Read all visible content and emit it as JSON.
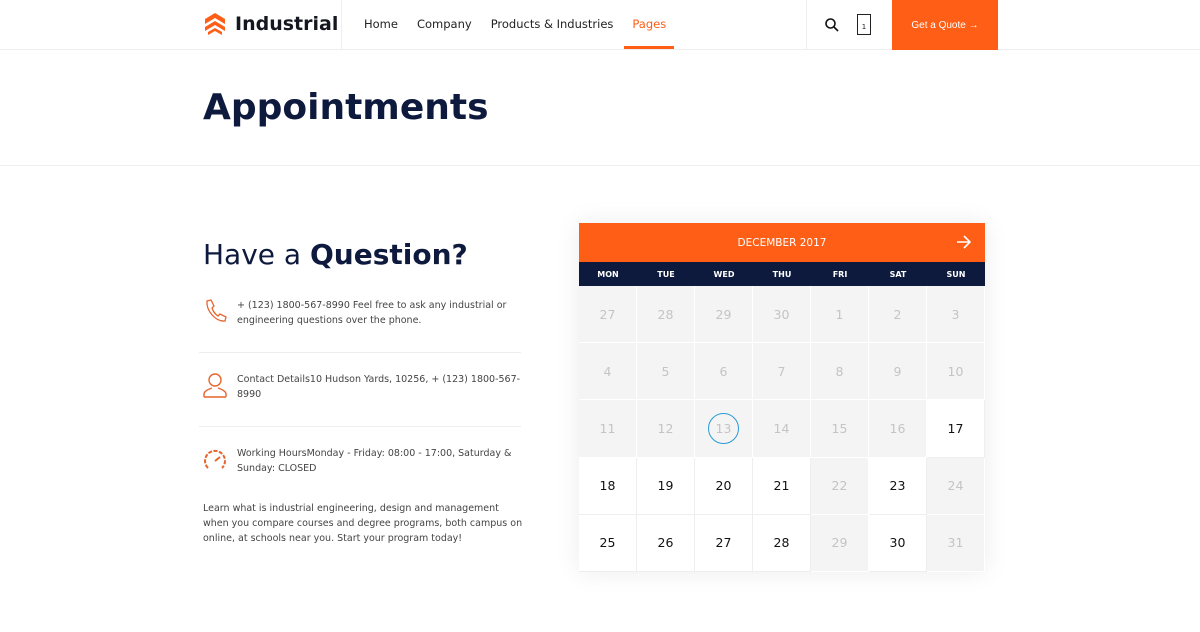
{
  "nav": {
    "brand": "Industrial",
    "items": [
      "Home",
      "Company",
      "Products & Industries",
      "Pages"
    ],
    "active": "Pages",
    "cart_count": "1",
    "quote_label": "Get a Quote →"
  },
  "page": {
    "title": "Appointments"
  },
  "contact": {
    "heading_light": "Have a ",
    "heading_bold": "Question?",
    "items": [
      {
        "icon": "phone-icon",
        "text": "+ (123) 1800-567-8990 Feel free to ask any industrial or engineering questions over the phone."
      },
      {
        "icon": "user-icon",
        "text": "Contact Details10 Hudson Yards, 10256, + (123) 1800-567-8990"
      },
      {
        "icon": "speedometer-icon",
        "text": "Working HoursMonday - Friday: 08:00 - 17:00, Saturday & Sunday: CLOSED"
      }
    ],
    "paragraph": "Learn what is industrial engineering, design and management when you compare courses and degree programs, both campus on online, at schools near you. Start your program today!"
  },
  "calendar": {
    "month": "DECEMBER 2017",
    "weekdays": [
      "MON",
      "TUE",
      "WED",
      "THU",
      "FRI",
      "SAT",
      "SUN"
    ],
    "days": [
      27,
      28,
      29,
      30,
      1,
      2,
      3,
      4,
      5,
      6,
      7,
      8,
      9,
      10,
      11,
      12,
      13,
      14,
      15,
      16,
      17,
      18,
      19,
      20,
      21,
      22,
      23,
      24,
      25,
      26,
      27,
      28,
      29,
      30,
      31
    ],
    "unavailable_indices": [
      0,
      1,
      2,
      3,
      4,
      5,
      6,
      7,
      8,
      9,
      10,
      11,
      12,
      13,
      14,
      15,
      16,
      17,
      18,
      19,
      25,
      27,
      32,
      34
    ],
    "today_index": 16,
    "accent": "#fe5e15",
    "header_dark": "#0e1a3d",
    "today_ring": "#2a9ad6"
  }
}
